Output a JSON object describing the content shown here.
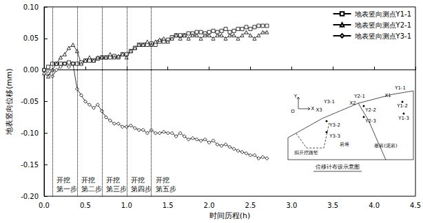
{
  "chart_data": {
    "type": "line",
    "x_label": "时间历程(h)",
    "y_label": "地表竖向位移(mm)",
    "x": [
      0,
      0.05,
      0.1,
      0.15,
      0.2,
      0.25,
      0.3,
      0.35,
      0.4,
      0.45,
      0.5,
      0.55,
      0.6,
      0.65,
      0.7,
      0.75,
      0.8,
      0.85,
      0.9,
      0.95,
      1.0,
      1.05,
      1.1,
      1.15,
      1.2,
      1.25,
      1.3,
      1.35,
      1.4,
      1.45,
      1.5,
      1.55,
      1.6,
      1.65,
      1.7,
      1.75,
      1.8,
      1.85,
      1.9,
      1.95,
      2.0,
      2.05,
      2.1,
      2.15,
      2.2,
      2.25,
      2.3,
      2.35,
      2.4,
      2.45,
      2.5,
      2.55,
      2.6,
      2.65,
      2.7
    ],
    "series": [
      {
        "name": "地表竖向测点Y1-1",
        "color": "#000000",
        "marker": "square",
        "values": [
          0,
          0.005,
          0.01,
          0.01,
          0.01,
          0.01,
          0.012,
          0.01,
          0.01,
          0.012,
          0.015,
          0.015,
          0.015,
          0.018,
          0.02,
          0.02,
          0.02,
          0.022,
          0.02,
          0.025,
          0.025,
          0.03,
          0.035,
          0.04,
          0.04,
          0.04,
          0.042,
          0.04,
          0.045,
          0.045,
          0.048,
          0.052,
          0.055,
          0.055,
          0.055,
          0.058,
          0.058,
          0.06,
          0.06,
          0.058,
          0.06,
          0.062,
          0.06,
          0.062,
          0.065,
          0.06,
          0.062,
          0.065,
          0.065,
          0.068,
          0.065,
          0.068,
          0.07,
          0.07,
          0.07
        ]
      },
      {
        "name": "地表竖向测点Y2-1",
        "color": "#000000",
        "marker": "triangle",
        "values": [
          -0.005,
          -0.01,
          0,
          0.01,
          0.02,
          0.025,
          0.035,
          0.04,
          0.03,
          0.01,
          0.015,
          0.02,
          0.015,
          0.02,
          0.02,
          0.02,
          0.025,
          0.02,
          0.022,
          0.025,
          0.02,
          0.03,
          0.035,
          0.04,
          0.04,
          0.045,
          0.04,
          0.045,
          0.048,
          0.05,
          0.045,
          0.05,
          0.055,
          0.05,
          0.055,
          0.05,
          0.055,
          0.055,
          0.05,
          0.055,
          0.055,
          0.05,
          0.055,
          0.055,
          0.05,
          0.055,
          0.055,
          0.05,
          0.055,
          0.06,
          0.055,
          0.05,
          0.055,
          0.06,
          0.06
        ]
      },
      {
        "name": "地表竖向测点Y3-1",
        "color": "#000000",
        "marker": "diamond",
        "values": [
          0,
          -0.005,
          -0.01,
          0,
          0.005,
          0.01,
          0.005,
          0.01,
          -0.03,
          -0.04,
          -0.05,
          -0.055,
          -0.06,
          -0.055,
          -0.065,
          -0.075,
          -0.08,
          -0.085,
          -0.085,
          -0.09,
          -0.09,
          -0.088,
          -0.092,
          -0.095,
          -0.095,
          -0.1,
          -0.095,
          -0.1,
          -0.1,
          -0.098,
          -0.1,
          -0.1,
          -0.105,
          -0.1,
          -0.105,
          -0.11,
          -0.108,
          -0.11,
          -0.112,
          -0.11,
          -0.115,
          -0.112,
          -0.118,
          -0.12,
          -0.118,
          -0.122,
          -0.125,
          -0.128,
          -0.13,
          -0.132,
          -0.135,
          -0.135,
          -0.14,
          -0.138,
          -0.14
        ]
      }
    ],
    "xlim": [
      0,
      4.5
    ],
    "xticks": [
      {
        "value": 0,
        "label": "0.0"
      },
      0.5,
      {
        "value": 1,
        "label": "1.0"
      },
      1.5,
      {
        "value": 2,
        "label": "2.0"
      },
      2.5,
      {
        "value": 3,
        "label": "3.0"
      },
      3.5,
      {
        "value": 4,
        "label": "4.0"
      },
      4.5
    ],
    "ylim": [
      -0.2,
      0.1
    ],
    "yticks": [
      {
        "value": -0.2,
        "label": "-0.20"
      },
      -0.15,
      {
        "value": -0.1,
        "label": "-0.10"
      },
      -0.05,
      {
        "value": 0,
        "label": "0.00"
      },
      0.05,
      {
        "value": 0.1,
        "label": "0.10"
      }
    ],
    "grid": false,
    "legend": "upper right",
    "annotations": [
      {
        "x": 0.1,
        "text": "开挖\n第一步"
      },
      {
        "x": 0.4,
        "text": "开挖\n第二步"
      },
      {
        "x": 0.7,
        "text": "开挖\n第三步"
      },
      {
        "x": 1.0,
        "text": "开挖\n第四步"
      },
      {
        "x": 1.3,
        "text": "开挖\n第五步"
      }
    ],
    "inset": {
      "title": "位移计布设示意图",
      "labels": [
        "Y",
        "O",
        "X",
        "Y3-1",
        "X3",
        "Y2-1",
        "X2",
        "Y1-1",
        "X1",
        "Y1-2",
        "Y1-3",
        "Y2-2",
        "Y2-3",
        "Y3-2",
        "Y3-3",
        "拟开挖路堑",
        "岩堆",
        "基岩(泥岩)"
      ]
    }
  }
}
